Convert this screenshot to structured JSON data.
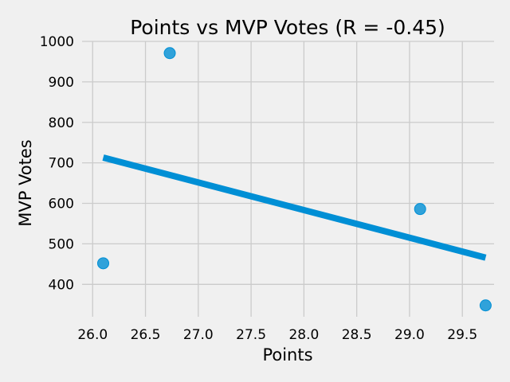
{
  "chart_data": {
    "type": "scatter",
    "title": "Points vs MVP Votes (R = -0.45)",
    "xlabel": "Points",
    "ylabel": "MVP Votes",
    "xlim": [
      25.9,
      29.8
    ],
    "ylim": [
      320,
      1000
    ],
    "xticks": [
      26.0,
      26.5,
      27.0,
      27.5,
      28.0,
      28.5,
      29.0,
      29.5
    ],
    "yticks": [
      400,
      500,
      600,
      700,
      800,
      900,
      1000
    ],
    "grid": true,
    "points": [
      {
        "x": 26.1,
        "y": 452
      },
      {
        "x": 26.73,
        "y": 971
      },
      {
        "x": 29.1,
        "y": 586
      },
      {
        "x": 29.72,
        "y": 348
      }
    ],
    "trendline": {
      "x": [
        26.1,
        29.72
      ],
      "y": [
        713,
        466
      ]
    },
    "colors": {
      "point": "#008fd5",
      "line": "#008fd5"
    }
  }
}
